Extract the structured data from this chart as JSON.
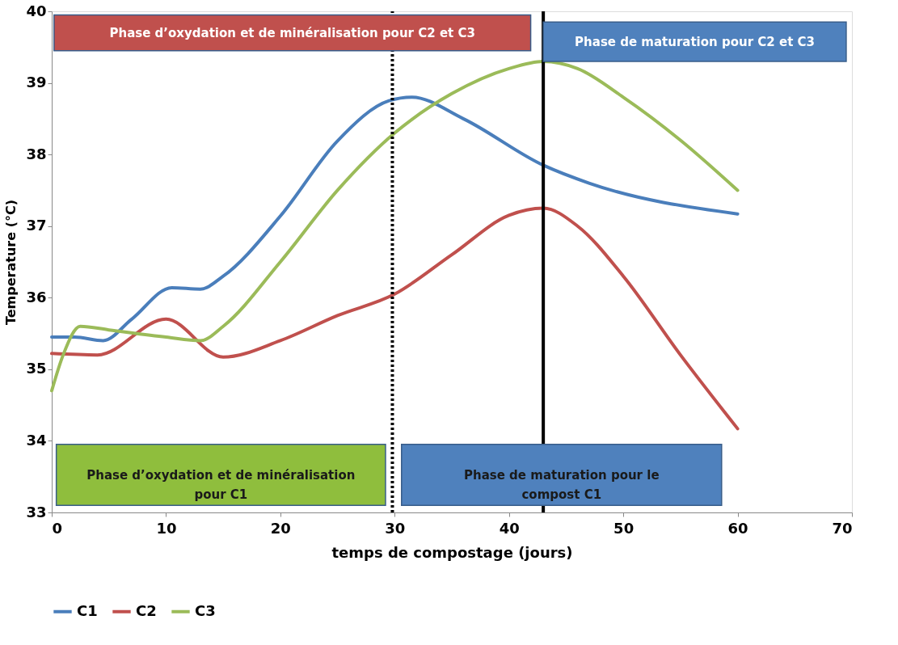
{
  "chart_data": {
    "type": "line",
    "xlabel": "temps de compostage (jours)",
    "ylabel": "Temperature (°C)",
    "xlim": [
      0,
      70
    ],
    "xticks": [
      0,
      10,
      20,
      30,
      40,
      50,
      60,
      70
    ],
    "ylim": [
      33,
      40
    ],
    "yticks": [
      33,
      34,
      35,
      36,
      37,
      38,
      39,
      40
    ],
    "grid": false,
    "legend": "bottom",
    "marker": "none",
    "line_style": "solid",
    "series": [
      {
        "name": "C1",
        "color": "#4a7ebb",
        "x": [
          0,
          2,
          4.5,
          7,
          10.5,
          13,
          15,
          20,
          25,
          29.5,
          31.5,
          36,
          43,
          47,
          60
        ],
        "values": [
          35.45,
          35.45,
          35.4,
          35.7,
          36.14,
          36.12,
          36.3,
          37.14,
          38.19,
          38.75,
          38.8,
          38.5,
          37.85,
          37.6,
          37.17
        ]
      },
      {
        "name": "C2",
        "color": "#c0504d",
        "x": [
          0,
          4,
          10,
          15,
          20,
          25,
          30,
          35,
          40,
          43,
          46,
          50,
          55,
          60
        ],
        "values": [
          35.22,
          35.2,
          35.7,
          35.17,
          35.4,
          35.75,
          36.05,
          36.6,
          37.15,
          37.25,
          37.0,
          36.3,
          35.2,
          34.17
        ]
      },
      {
        "name": "C3",
        "color": "#9bbb59",
        "x": [
          0,
          1,
          2.5,
          5,
          10,
          13,
          15,
          20,
          25,
          30,
          35,
          40,
          43,
          46,
          50,
          55,
          60
        ],
        "values": [
          34.7,
          35.2,
          35.6,
          35.55,
          35.45,
          35.4,
          35.6,
          36.5,
          37.5,
          38.3,
          38.85,
          39.2,
          39.3,
          39.2,
          38.8,
          38.2,
          37.5
        ]
      }
    ],
    "ref_lines": [
      {
        "axis": "x",
        "value": 29.8,
        "line_style": "dotted",
        "color": "#000000"
      },
      {
        "axis": "x",
        "value": 43,
        "line_style": "solid",
        "color": "#000000"
      }
    ],
    "annotations": [
      "Phase d’oxydation et de minéralisation pour C2 et C3",
      "Phase de maturation pour C2 et C3",
      "Phase d’oxydation et de minéralisation\npour C1",
      "Phase de maturation pour le\ncompost C1"
    ]
  }
}
